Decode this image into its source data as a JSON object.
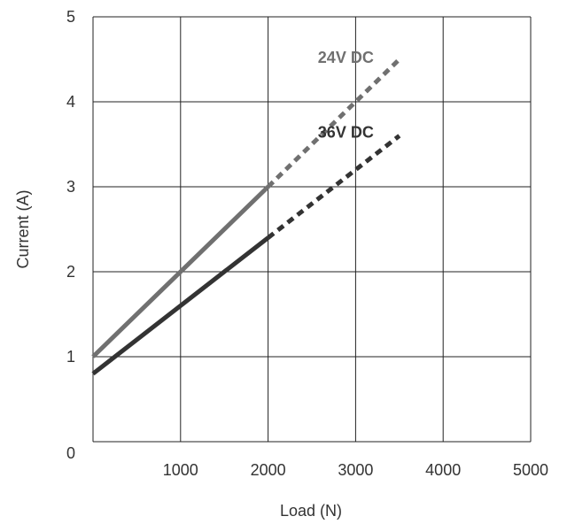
{
  "chart_data": {
    "type": "line",
    "title": "",
    "xlabel": "Load (N)",
    "ylabel": "Current (A)",
    "xlim": [
      0,
      5000
    ],
    "ylim": [
      0,
      5
    ],
    "x_ticks": [
      "",
      "1000",
      "2000",
      "3000",
      "4000",
      "5000"
    ],
    "y_ticks": [
      "0",
      "1",
      "2",
      "3",
      "4",
      "5"
    ],
    "grid": true,
    "series": [
      {
        "name": "24V DC",
        "color": "#707070",
        "solid": {
          "x": [
            0,
            2000
          ],
          "y": [
            1.0,
            3.0
          ]
        },
        "dashed": {
          "x": [
            2000,
            3500
          ],
          "y": [
            3.0,
            4.5
          ]
        }
      },
      {
        "name": "36V DC",
        "color": "#333333",
        "solid": {
          "x": [
            0,
            2000
          ],
          "y": [
            0.8,
            2.4
          ]
        },
        "dashed": {
          "x": [
            2000,
            3500
          ],
          "y": [
            2.4,
            3.6
          ]
        }
      }
    ]
  }
}
